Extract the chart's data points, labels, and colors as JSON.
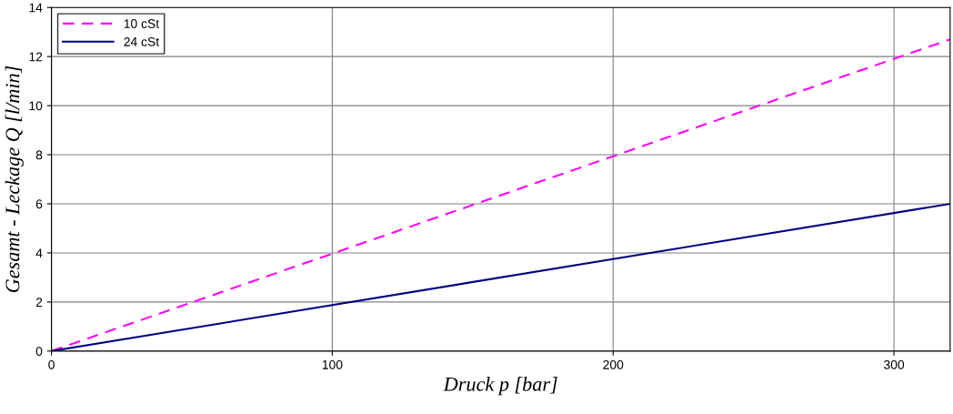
{
  "chart_data": {
    "type": "line",
    "xlabel": "Druck p [bar]",
    "ylabel": "Gesamt - Leckage Q [l/min]",
    "x": [
      0,
      320
    ],
    "series": [
      {
        "name": "10 cSt",
        "color": "#ff00ff",
        "values": [
          0,
          12.7
        ],
        "line_style": "dashed"
      },
      {
        "name": "24 cSt",
        "color": "#000080",
        "values": [
          0,
          6.0
        ],
        "line_style": "solid"
      }
    ],
    "xlim": [
      0,
      320
    ],
    "xticks": [
      0,
      100,
      200,
      300
    ],
    "ylim": [
      0,
      14
    ],
    "yticks": [
      0,
      2,
      4,
      6,
      8,
      10,
      12,
      14
    ],
    "grid": true,
    "legend": "top left",
    "marker": "none"
  }
}
